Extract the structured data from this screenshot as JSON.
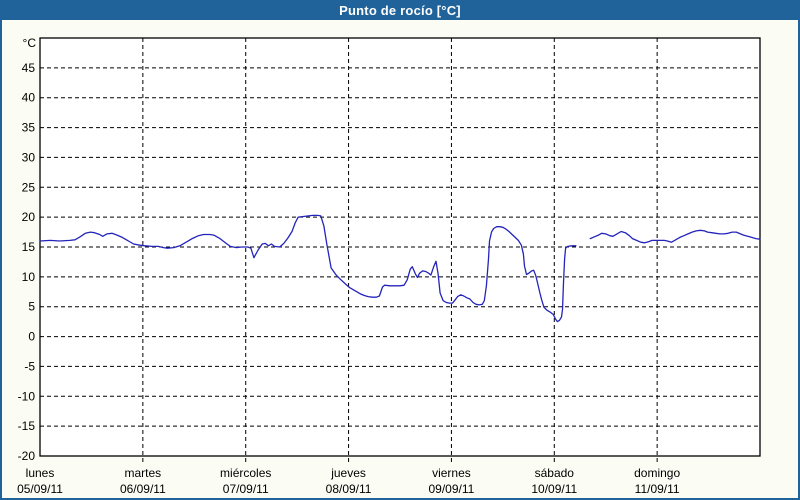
{
  "window": {
    "title": "Punto de rocío [°C]"
  },
  "chart_data": {
    "type": "line",
    "title": "Punto de rocío [°C]",
    "y_axis": {
      "unit_label": "°C",
      "min": -20,
      "max": 50,
      "tick_step": 5,
      "tick_values": [
        45,
        40,
        35,
        30,
        25,
        20,
        15,
        10,
        5,
        0,
        -5,
        -10,
        -15,
        -20
      ],
      "tick_labels": [
        "45",
        "40",
        "35",
        "30",
        "25",
        "20",
        "15",
        "10",
        "5",
        "0",
        "-5",
        "-10",
        "-15",
        "-20"
      ],
      "grid": "dashed"
    },
    "x_axis": {
      "days": [
        {
          "name": "lunes",
          "date": "05/09/11"
        },
        {
          "name": "martes",
          "date": "06/09/11"
        },
        {
          "name": "miércoles",
          "date": "07/09/11"
        },
        {
          "name": "jueves",
          "date": "08/09/11"
        },
        {
          "name": "viernes",
          "date": "09/09/11"
        },
        {
          "name": "sábado",
          "date": "10/09/11"
        },
        {
          "name": "domingo",
          "date": "11/09/11"
        }
      ],
      "grid": "dashed"
    },
    "colors": {
      "frame": "#20639a",
      "background": "#fbfdf4",
      "plot_background": "#ffffff",
      "grid": "#000000",
      "text": "#000000",
      "title_text": "#ffffff",
      "line": "#2424bb"
    },
    "series": [
      {
        "name": "Punto de rocío",
        "unit": "°C",
        "color": "#2424bb",
        "segments": [
          [
            [
              0.0,
              16.0
            ],
            [
              0.1,
              16.1
            ],
            [
              0.19,
              16.0
            ],
            [
              0.29,
              16.1
            ],
            [
              0.34,
              16.2
            ],
            [
              0.39,
              16.7
            ],
            [
              0.44,
              17.3
            ],
            [
              0.49,
              17.5
            ],
            [
              0.53,
              17.4
            ],
            [
              0.58,
              17.1
            ],
            [
              0.61,
              16.8
            ],
            [
              0.65,
              17.2
            ],
            [
              0.7,
              17.3
            ],
            [
              0.75,
              17.0
            ],
            [
              0.8,
              16.6
            ],
            [
              0.86,
              16.0
            ],
            [
              0.91,
              15.5
            ],
            [
              0.97,
              15.3
            ],
            [
              1.02,
              15.2
            ],
            [
              1.09,
              15.1
            ],
            [
              1.15,
              15.1
            ],
            [
              1.2,
              14.9
            ],
            [
              1.24,
              14.8
            ],
            [
              1.3,
              14.9
            ],
            [
              1.36,
              15.2
            ],
            [
              1.42,
              15.8
            ],
            [
              1.48,
              16.4
            ],
            [
              1.54,
              16.9
            ],
            [
              1.59,
              17.1
            ],
            [
              1.65,
              17.1
            ],
            [
              1.69,
              17.0
            ],
            [
              1.75,
              16.4
            ],
            [
              1.81,
              15.6
            ],
            [
              1.85,
              15.1
            ],
            [
              1.91,
              14.9
            ],
            [
              1.96,
              15.0
            ],
            [
              2.02,
              15.0
            ],
            [
              2.05,
              14.8
            ],
            [
              2.08,
              13.2
            ],
            [
              2.12,
              14.5
            ],
            [
              2.16,
              15.5
            ],
            [
              2.19,
              15.6
            ],
            [
              2.22,
              15.2
            ],
            [
              2.25,
              15.5
            ],
            [
              2.28,
              15.1
            ],
            [
              2.33,
              15.0
            ],
            [
              2.37,
              15.6
            ],
            [
              2.41,
              16.5
            ],
            [
              2.45,
              17.6
            ],
            [
              2.48,
              19.0
            ],
            [
              2.51,
              20.0
            ],
            [
              2.56,
              20.1
            ],
            [
              2.61,
              20.2
            ],
            [
              2.65,
              20.3
            ],
            [
              2.7,
              20.3
            ],
            [
              2.73,
              20.2
            ],
            [
              2.76,
              18.5
            ],
            [
              2.79,
              15.3
            ],
            [
              2.83,
              11.5
            ],
            [
              2.88,
              10.3
            ],
            [
              2.92,
              9.6
            ],
            [
              2.97,
              8.8
            ],
            [
              3.01,
              8.2
            ],
            [
              3.06,
              7.7
            ],
            [
              3.11,
              7.2
            ],
            [
              3.15,
              6.9
            ],
            [
              3.19,
              6.7
            ],
            [
              3.23,
              6.6
            ],
            [
              3.27,
              6.6
            ],
            [
              3.3,
              6.8
            ],
            [
              3.33,
              8.3
            ],
            [
              3.35,
              8.6
            ],
            [
              3.4,
              8.5
            ],
            [
              3.45,
              8.5
            ],
            [
              3.5,
              8.5
            ],
            [
              3.54,
              8.6
            ],
            [
              3.57,
              9.5
            ],
            [
              3.6,
              11.3
            ],
            [
              3.62,
              11.7
            ],
            [
              3.65,
              10.5
            ],
            [
              3.67,
              9.9
            ],
            [
              3.69,
              10.6
            ],
            [
              3.72,
              11.0
            ],
            [
              3.75,
              10.9
            ],
            [
              3.78,
              10.6
            ],
            [
              3.8,
              10.3
            ],
            [
              3.83,
              11.8
            ],
            [
              3.85,
              12.6
            ],
            [
              3.87,
              10.5
            ],
            [
              3.89,
              7.3
            ],
            [
              3.92,
              6.0
            ],
            [
              3.95,
              5.7
            ],
            [
              3.98,
              5.6
            ],
            [
              4.01,
              5.6
            ],
            [
              4.03,
              6.0
            ],
            [
              4.06,
              6.7
            ],
            [
              4.09,
              7.0
            ],
            [
              4.12,
              6.8
            ],
            [
              4.15,
              6.5
            ],
            [
              4.18,
              6.3
            ],
            [
              4.21,
              5.7
            ],
            [
              4.24,
              5.4
            ],
            [
              4.27,
              5.3
            ],
            [
              4.3,
              5.4
            ],
            [
              4.32,
              6.0
            ],
            [
              4.34,
              8.5
            ],
            [
              4.36,
              13.0
            ],
            [
              4.37,
              16.0
            ],
            [
              4.39,
              17.5
            ],
            [
              4.41,
              18.1
            ],
            [
              4.44,
              18.4
            ],
            [
              4.47,
              18.4
            ],
            [
              4.5,
              18.3
            ],
            [
              4.53,
              18.0
            ],
            [
              4.56,
              17.6
            ],
            [
              4.59,
              17.1
            ],
            [
              4.62,
              16.6
            ],
            [
              4.65,
              16.1
            ],
            [
              4.68,
              15.3
            ],
            [
              4.7,
              13.8
            ],
            [
              4.71,
              11.8
            ],
            [
              4.73,
              10.4
            ],
            [
              4.75,
              10.6
            ],
            [
              4.78,
              11.0
            ],
            [
              4.8,
              11.1
            ],
            [
              4.82,
              10.2
            ],
            [
              4.84,
              8.8
            ],
            [
              4.86,
              7.3
            ],
            [
              4.88,
              6.0
            ],
            [
              4.9,
              4.9
            ],
            [
              4.93,
              4.4
            ],
            [
              4.96,
              4.1
            ],
            [
              4.99,
              3.7
            ],
            [
              5.01,
              3.0
            ],
            [
              5.03,
              2.5
            ],
            [
              5.05,
              2.7
            ],
            [
              5.07,
              3.3
            ],
            [
              5.08,
              4.5
            ],
            [
              5.09,
              9.0
            ],
            [
              5.1,
              13.0
            ],
            [
              5.11,
              14.8
            ],
            [
              5.13,
              15.1
            ],
            [
              5.17,
              15.2
            ],
            [
              5.21,
              15.2
            ]
          ],
          [
            [
              5.35,
              16.4
            ],
            [
              5.39,
              16.7
            ],
            [
              5.43,
              17.0
            ],
            [
              5.46,
              17.3
            ],
            [
              5.5,
              17.2
            ],
            [
              5.54,
              16.9
            ],
            [
              5.57,
              16.8
            ],
            [
              5.61,
              17.2
            ],
            [
              5.65,
              17.6
            ],
            [
              5.69,
              17.4
            ],
            [
              5.73,
              16.9
            ],
            [
              5.76,
              16.4
            ],
            [
              5.8,
              16.1
            ],
            [
              5.84,
              15.8
            ],
            [
              5.88,
              15.7
            ],
            [
              5.92,
              15.9
            ],
            [
              5.95,
              16.1
            ],
            [
              5.99,
              16.1
            ],
            [
              6.03,
              16.1
            ],
            [
              6.07,
              16.1
            ],
            [
              6.1,
              16.0
            ],
            [
              6.14,
              15.8
            ],
            [
              6.18,
              16.2
            ],
            [
              6.22,
              16.6
            ],
            [
              6.26,
              16.9
            ],
            [
              6.3,
              17.2
            ],
            [
              6.34,
              17.5
            ],
            [
              6.38,
              17.7
            ],
            [
              6.42,
              17.8
            ],
            [
              6.46,
              17.7
            ],
            [
              6.49,
              17.5
            ],
            [
              6.53,
              17.4
            ],
            [
              6.57,
              17.3
            ],
            [
              6.61,
              17.2
            ],
            [
              6.65,
              17.2
            ],
            [
              6.69,
              17.3
            ],
            [
              6.73,
              17.5
            ],
            [
              6.77,
              17.5
            ],
            [
              6.81,
              17.2
            ],
            [
              6.84,
              17.0
            ],
            [
              6.88,
              16.8
            ],
            [
              6.92,
              16.6
            ],
            [
              6.96,
              16.4
            ],
            [
              7.0,
              16.3
            ]
          ]
        ]
      }
    ]
  }
}
